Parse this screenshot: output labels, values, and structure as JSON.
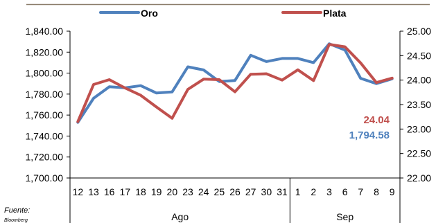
{
  "chart_data": {
    "type": "line",
    "categories": [
      "12",
      "13",
      "16",
      "17",
      "18",
      "19",
      "20",
      "23",
      "24",
      "25",
      "26",
      "27",
      "30",
      "31",
      "1",
      "2",
      "3",
      "6",
      "7",
      "8",
      "9"
    ],
    "groups": [
      {
        "label": "Ago",
        "count": 14
      },
      {
        "label": "Sep",
        "count": 7
      }
    ],
    "series": [
      {
        "name": "Oro",
        "axis": "left",
        "color": "#4f81bd",
        "values": [
          1753,
          1776,
          1787,
          1786,
          1788,
          1781,
          1782,
          1806,
          1803,
          1792,
          1793,
          1817,
          1811,
          1814,
          1814,
          1810,
          1828,
          1822,
          1795,
          1790,
          1794.58
        ]
      },
      {
        "name": "Plata",
        "axis": "right",
        "color": "#c0504d",
        "values": [
          23.15,
          23.91,
          24.01,
          23.84,
          23.69,
          23.45,
          23.22,
          23.81,
          24.02,
          24.01,
          23.76,
          24.12,
          24.13,
          24.0,
          24.21,
          23.99,
          24.73,
          24.68,
          24.35,
          23.95,
          24.04
        ]
      }
    ],
    "left_axis": {
      "min": 1700,
      "max": 1840,
      "step": 20,
      "tick_labels": [
        "1,700.00",
        "1,720.00",
        "1,740.00",
        "1,760.00",
        "1,780.00",
        "1,800.00",
        "1,820.00",
        "1,840.00"
      ]
    },
    "right_axis": {
      "min": 22,
      "max": 25,
      "step": 0.5,
      "tick_labels": [
        "22.00",
        "22.50",
        "23.00",
        "23.50",
        "24.00",
        "24.50",
        "25.00"
      ]
    },
    "annotations": [
      {
        "text": "24.04",
        "color": "#c0504d"
      },
      {
        "text": "1,794.58",
        "color": "#4f81bd"
      }
    ],
    "legend_position": "top",
    "grid": false
  },
  "source_note": {
    "line1": "Fuente:",
    "line2": "Bloomberg"
  }
}
